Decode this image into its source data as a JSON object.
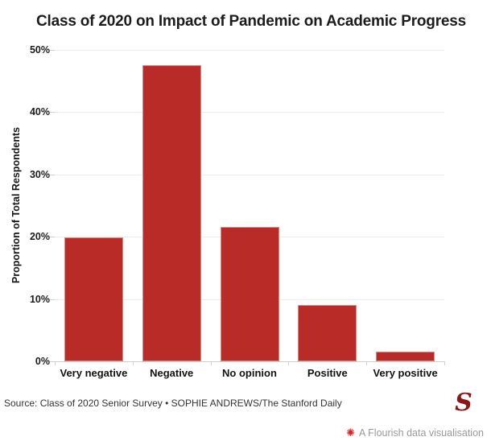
{
  "chart_data": {
    "type": "bar",
    "title": "Class of 2020 on Impact of Pandemic on Academic Progress",
    "categories": [
      "Very negative",
      "Negative",
      "No opinion",
      "Positive",
      "Very positive"
    ],
    "values": [
      19.9,
      47.6,
      21.6,
      9.1,
      1.5
    ],
    "xlabel": "",
    "ylabel": "Proportion of Total Respondents",
    "ylim": [
      0,
      50
    ],
    "ytick_labels": [
      "0%",
      "10%",
      "20%",
      "30%",
      "40%",
      "50%"
    ],
    "grid": true,
    "legend": "none",
    "bar_color": "#b92b27"
  },
  "footer": {
    "source": "Source: Class of 2020 Senior Survey • SOPHIE ANDREWS/The Stanford Daily",
    "flourish_label": "A Flourish data visualisation",
    "stanford_logo_letter": "S"
  },
  "icons": {
    "flourish": "✺"
  },
  "colors": {
    "bar": "#b92b27",
    "bar_stroke": "#d88c85",
    "gridline": "#ececec",
    "stanford_red": "#8c1515",
    "flourish_red": "#d6201f",
    "credit_gray": "#9a9a9a"
  }
}
